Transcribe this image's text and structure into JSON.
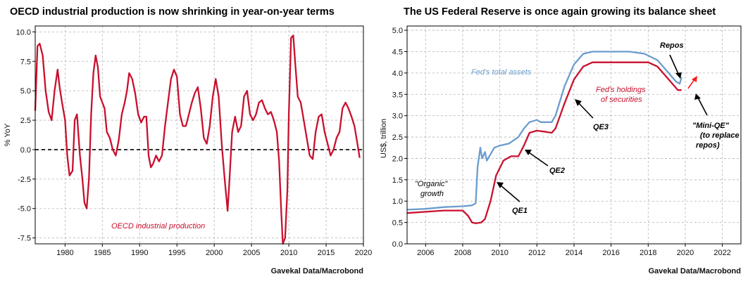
{
  "chart_data": [
    {
      "type": "line",
      "title": "OECD industrial production is now shrinking in year-on-year terms",
      "xlabel": "",
      "ylabel": "% YoY",
      "xlim": [
        1976,
        2020
      ],
      "ylim": [
        -8,
        10.5
      ],
      "x_ticks": [
        "1980",
        "1985",
        "1990",
        "1995",
        "2000",
        "2005",
        "2010",
        "2015",
        "2020"
      ],
      "y_ticks": [
        "10.0",
        "7.5",
        "5.0",
        "2.5",
        "0.0",
        "-2.5",
        "-5.0",
        "-7.5"
      ],
      "zero_line": true,
      "color": "#c8102e",
      "source": "Gavekal Data/Macrobond",
      "annotations": [
        {
          "text": "OECD industrial production",
          "color": "#c8102e"
        }
      ],
      "series": [
        {
          "name": "OECD industrial production",
          "x": [
            1976.0,
            1976.3,
            1976.6,
            1977.0,
            1977.4,
            1977.8,
            1978.2,
            1978.6,
            1979.0,
            1979.3,
            1979.6,
            1980.0,
            1980.3,
            1980.6,
            1981.0,
            1981.3,
            1981.6,
            1982.0,
            1982.3,
            1982.6,
            1982.9,
            1983.2,
            1983.5,
            1983.8,
            1984.1,
            1984.4,
            1984.7,
            1985.0,
            1985.3,
            1985.6,
            1986.0,
            1986.4,
            1986.8,
            1987.2,
            1987.6,
            1988.0,
            1988.3,
            1988.6,
            1989.0,
            1989.4,
            1989.8,
            1990.2,
            1990.6,
            1990.9,
            1991.2,
            1991.5,
            1991.8,
            1992.2,
            1992.6,
            1993.0,
            1993.4,
            1993.8,
            1994.2,
            1994.6,
            1995.0,
            1995.4,
            1995.8,
            1996.2,
            1996.6,
            1997.0,
            1997.4,
            1997.8,
            1998.2,
            1998.6,
            1999.0,
            1999.4,
            1999.8,
            2000.2,
            2000.6,
            2001.0,
            2001.4,
            2001.8,
            2002.0,
            2002.4,
            2002.8,
            2003.2,
            2003.6,
            2004.0,
            2004.4,
            2004.8,
            2005.2,
            2005.6,
            2006.0,
            2006.4,
            2006.8,
            2007.2,
            2007.6,
            2008.0,
            2008.4,
            2008.7,
            2009.0,
            2009.2,
            2009.5,
            2009.8,
            2010.0,
            2010.3,
            2010.6,
            2010.9,
            2011.2,
            2011.6,
            2012.0,
            2012.4,
            2012.8,
            2013.2,
            2013.6,
            2014.0,
            2014.4,
            2014.8,
            2015.2,
            2015.6,
            2016.0,
            2016.4,
            2016.8,
            2017.2,
            2017.6,
            2018.0,
            2018.4,
            2018.8,
            2019.2,
            2019.5
          ],
          "y": [
            3.3,
            8.8,
            9.0,
            8.0,
            5.0,
            3.2,
            2.5,
            5.0,
            6.8,
            5.2,
            4.0,
            2.5,
            -0.5,
            -2.2,
            -1.8,
            2.5,
            3.0,
            -0.5,
            -2.3,
            -4.5,
            -5.0,
            -2.5,
            3.0,
            6.5,
            8.0,
            7.0,
            4.5,
            4.0,
            3.5,
            1.5,
            1.0,
            0.0,
            -0.5,
            0.8,
            3.0,
            4.0,
            5.0,
            6.5,
            6.0,
            4.8,
            3.0,
            2.3,
            2.8,
            2.8,
            -0.5,
            -1.5,
            -1.2,
            -0.5,
            -1.0,
            -0.5,
            2.0,
            4.0,
            6.0,
            6.8,
            6.2,
            3.0,
            2.0,
            2.0,
            3.0,
            4.0,
            4.8,
            5.3,
            3.5,
            1.0,
            0.5,
            2.0,
            4.5,
            6.0,
            4.5,
            0.5,
            -2.5,
            -5.2,
            -3.0,
            1.5,
            2.8,
            1.5,
            2.0,
            4.5,
            5.0,
            3.0,
            2.5,
            3.0,
            4.0,
            4.2,
            3.5,
            3.0,
            3.2,
            2.5,
            1.5,
            -1.0,
            -5.5,
            -8.5,
            -7.5,
            -3.5,
            3.0,
            9.5,
            9.7,
            7.0,
            4.5,
            4.0,
            2.5,
            1.0,
            -0.5,
            -0.8,
            1.5,
            2.8,
            3.0,
            1.5,
            0.5,
            -0.5,
            0.0,
            1.0,
            1.5,
            3.5,
            4.0,
            3.5,
            2.8,
            2.0,
            0.5,
            -0.7
          ]
        }
      ]
    },
    {
      "type": "line",
      "title": "The US Federal Reserve is once again growing its balance sheet",
      "xlabel": "",
      "ylabel": "US$, trillion",
      "xlim": [
        2005,
        2023
      ],
      "ylim": [
        0,
        5.1
      ],
      "x_ticks": [
        "2006",
        "2008",
        "2010",
        "2012",
        "2014",
        "2016",
        "2018",
        "2020",
        "2022"
      ],
      "y_ticks": [
        "5.0",
        "4.5",
        "4.0",
        "3.5",
        "3.0",
        "2.5",
        "2.0",
        "1.5",
        "1.0",
        "0.5",
        "0.0"
      ],
      "source": "Gavekal Data/Macrobond",
      "annotations": [
        {
          "text": "Repos"
        },
        {
          "text": "Fed's total assets",
          "color": "#6a9ccf"
        },
        {
          "text": "Fed's holdings",
          "color": "#c8102e"
        },
        {
          "text": "of securities",
          "color": "#c8102e"
        },
        {
          "text": "QE3"
        },
        {
          "text": "QE2"
        },
        {
          "text": "QE1"
        },
        {
          "text": "\"Organic\""
        },
        {
          "text": "growth"
        },
        {
          "text": "\"Mini-QE\""
        },
        {
          "text": "(to replace"
        },
        {
          "text": "repos)"
        }
      ],
      "series": [
        {
          "name": "Fed's total assets",
          "color": "#6a9ccf",
          "x": [
            2005.0,
            2006.0,
            2007.0,
            2008.0,
            2008.5,
            2008.7,
            2008.8,
            2008.95,
            2009.05,
            2009.2,
            2009.3,
            2009.5,
            2009.7,
            2010.0,
            2010.5,
            2011.0,
            2011.3,
            2011.6,
            2012.0,
            2012.2,
            2012.5,
            2012.8,
            2013.0,
            2013.5,
            2014.0,
            2014.5,
            2015.0,
            2016.0,
            2017.0,
            2017.8,
            2018.5,
            2019.0,
            2019.5,
            2019.7,
            2019.8
          ],
          "y": [
            0.8,
            0.82,
            0.86,
            0.88,
            0.9,
            0.95,
            1.8,
            2.25,
            2.0,
            2.15,
            1.95,
            2.1,
            2.25,
            2.3,
            2.35,
            2.5,
            2.7,
            2.85,
            2.9,
            2.85,
            2.85,
            2.85,
            3.0,
            3.7,
            4.2,
            4.45,
            4.5,
            4.5,
            4.5,
            4.45,
            4.3,
            4.05,
            3.8,
            3.75,
            3.9
          ]
        },
        {
          "name": "Fed's holdings of securities",
          "color": "#c8102e",
          "x": [
            2005.0,
            2006.0,
            2007.0,
            2008.0,
            2008.3,
            2008.5,
            2008.7,
            2009.0,
            2009.2,
            2009.5,
            2009.8,
            2010.2,
            2010.6,
            2011.0,
            2011.3,
            2011.6,
            2012.0,
            2012.5,
            2012.8,
            2013.0,
            2013.5,
            2014.0,
            2014.5,
            2015.0,
            2016.0,
            2017.0,
            2018.0,
            2018.5,
            2019.0,
            2019.4,
            2019.6,
            2019.8
          ],
          "y": [
            0.72,
            0.75,
            0.78,
            0.78,
            0.65,
            0.5,
            0.48,
            0.5,
            0.58,
            1.0,
            1.6,
            1.95,
            2.05,
            2.05,
            2.3,
            2.6,
            2.65,
            2.62,
            2.6,
            2.7,
            3.3,
            3.85,
            4.15,
            4.25,
            4.25,
            4.25,
            4.25,
            4.15,
            3.9,
            3.7,
            3.6,
            3.6
          ]
        }
      ]
    }
  ]
}
